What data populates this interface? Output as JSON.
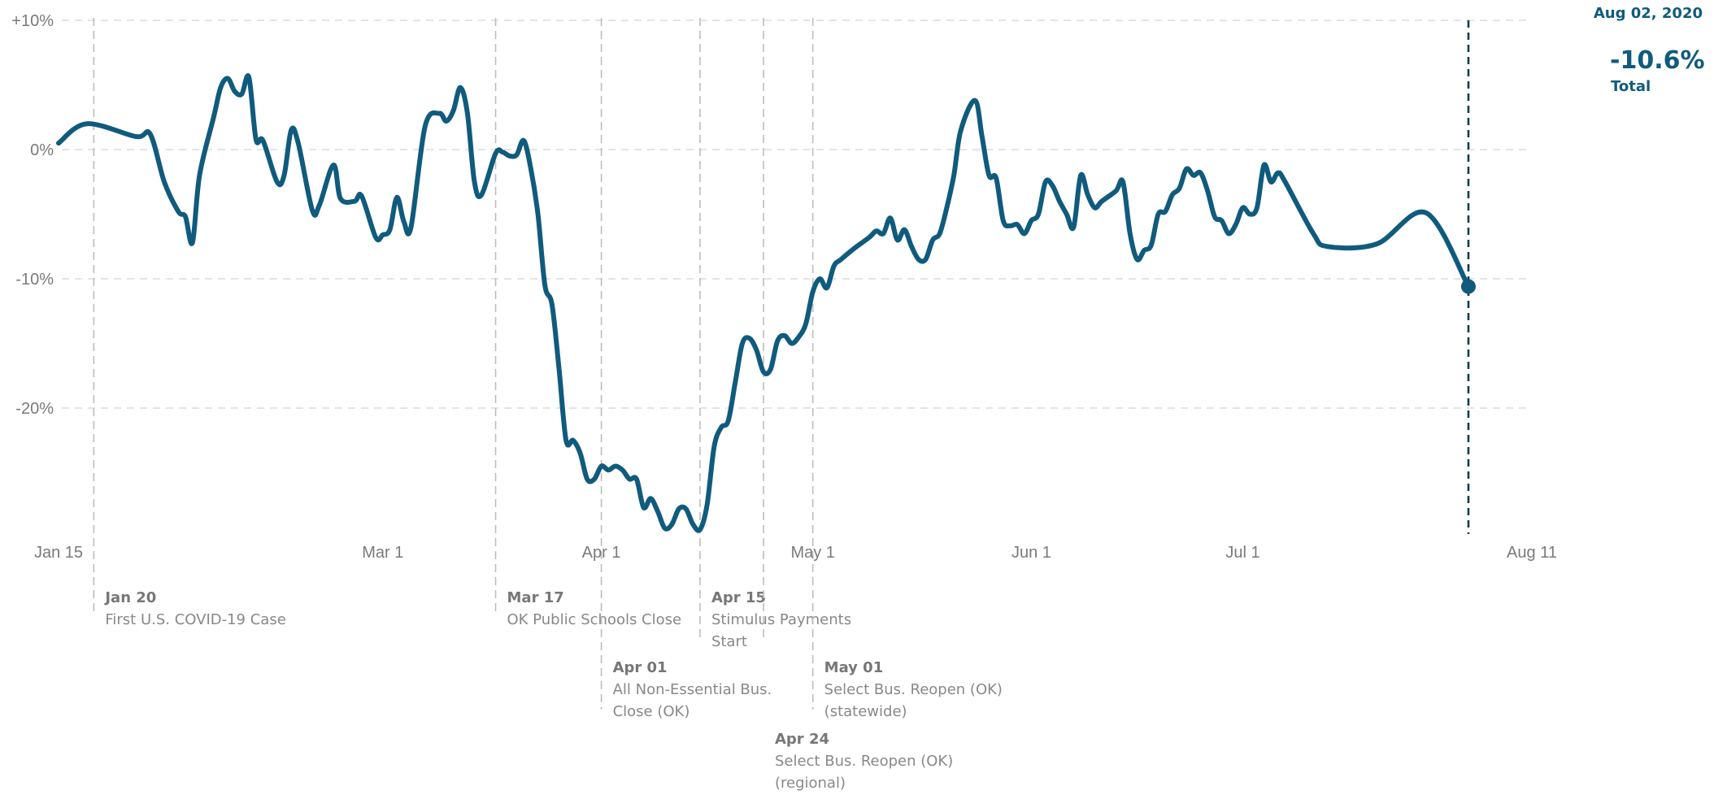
{
  "chart_data": {
    "type": "line",
    "title": "",
    "xlabel": "",
    "ylabel": "",
    "x_ticks": [
      {
        "date": "2020-01-15",
        "label": "Jan 15"
      },
      {
        "date": "2020-03-01",
        "label": "Mar 1"
      },
      {
        "date": "2020-04-01",
        "label": "Apr 1"
      },
      {
        "date": "2020-05-01",
        "label": "May 1"
      },
      {
        "date": "2020-06-01",
        "label": "Jun 1"
      },
      {
        "date": "2020-07-01",
        "label": "Jul 1"
      },
      {
        "date": "2020-08-11",
        "label": "Aug 11"
      }
    ],
    "y_ticks": [
      {
        "value": 10,
        "label": "+10%"
      },
      {
        "value": 0,
        "label": "0%"
      },
      {
        "value": -10,
        "label": "-10%"
      },
      {
        "value": -20,
        "label": "-20%"
      }
    ],
    "xlim": [
      "2020-01-15",
      "2020-08-11"
    ],
    "ylim": [
      -30.5,
      10
    ],
    "grid": {
      "horizontal": true,
      "style": "dashed"
    },
    "color": "#105b7d",
    "series": [
      {
        "points": [
          [
            "2020-01-15",
            0.5
          ],
          [
            "2020-01-19",
            2.0
          ],
          [
            "2020-01-26",
            1.0
          ],
          [
            "2020-01-28",
            1.2
          ],
          [
            "2020-01-30",
            -2.5
          ],
          [
            "2020-02-01",
            -4.8
          ],
          [
            "2020-02-02",
            -5.2
          ],
          [
            "2020-02-03",
            -7.2
          ],
          [
            "2020-02-04",
            -2.0
          ],
          [
            "2020-02-06",
            2.5
          ],
          [
            "2020-02-07",
            4.8
          ],
          [
            "2020-02-08",
            5.5
          ],
          [
            "2020-02-09",
            4.5
          ],
          [
            "2020-02-10",
            4.3
          ],
          [
            "2020-02-11",
            5.6
          ],
          [
            "2020-02-12",
            0.8
          ],
          [
            "2020-02-13",
            0.7
          ],
          [
            "2020-02-15",
            -2.5
          ],
          [
            "2020-02-16",
            -2.0
          ],
          [
            "2020-02-17",
            1.5
          ],
          [
            "2020-02-18",
            0.5
          ],
          [
            "2020-02-20",
            -4.7
          ],
          [
            "2020-02-21",
            -4.3
          ],
          [
            "2020-02-23",
            -1.2
          ],
          [
            "2020-02-24",
            -3.8
          ],
          [
            "2020-02-26",
            -4.0
          ],
          [
            "2020-02-27",
            -3.6
          ],
          [
            "2020-02-29",
            -6.8
          ],
          [
            "2020-03-01",
            -6.6
          ],
          [
            "2020-03-02",
            -6.2
          ],
          [
            "2020-03-03",
            -3.7
          ],
          [
            "2020-03-04",
            -5.6
          ],
          [
            "2020-03-05",
            -6.0
          ],
          [
            "2020-03-07",
            1.8
          ],
          [
            "2020-03-09",
            2.8
          ],
          [
            "2020-03-10",
            2.2
          ],
          [
            "2020-03-11",
            3.0
          ],
          [
            "2020-03-12",
            4.8
          ],
          [
            "2020-03-13",
            2.8
          ],
          [
            "2020-03-14",
            -2.5
          ],
          [
            "2020-03-15",
            -3.5
          ],
          [
            "2020-03-17",
            -0.3
          ],
          [
            "2020-03-18",
            -0.2
          ],
          [
            "2020-03-19",
            -0.5
          ],
          [
            "2020-03-20",
            -0.4
          ],
          [
            "2020-03-21",
            0.7
          ],
          [
            "2020-03-22",
            -1.5
          ],
          [
            "2020-03-23",
            -5.0
          ],
          [
            "2020-03-24",
            -10.5
          ],
          [
            "2020-03-25",
            -12.0
          ],
          [
            "2020-03-26",
            -17.0
          ],
          [
            "2020-03-27",
            -22.5
          ],
          [
            "2020-03-28",
            -22.5
          ],
          [
            "2020-03-29",
            -23.5
          ],
          [
            "2020-03-30",
            -25.5
          ],
          [
            "2020-03-31",
            -25.5
          ],
          [
            "2020-04-01",
            -24.5
          ],
          [
            "2020-04-02",
            -24.8
          ],
          [
            "2020-04-03",
            -24.5
          ],
          [
            "2020-04-04",
            -24.8
          ],
          [
            "2020-04-05",
            -25.5
          ],
          [
            "2020-04-06",
            -25.5
          ],
          [
            "2020-04-07",
            -27.7
          ],
          [
            "2020-04-08",
            -27.0
          ],
          [
            "2020-04-09",
            -28.0
          ],
          [
            "2020-04-10",
            -29.3
          ],
          [
            "2020-04-11",
            -29.0
          ],
          [
            "2020-04-12",
            -27.8
          ],
          [
            "2020-04-13",
            -27.8
          ],
          [
            "2020-04-14",
            -29.0
          ],
          [
            "2020-04-15",
            -29.4
          ],
          [
            "2020-04-16",
            -27.5
          ],
          [
            "2020-04-17",
            -23.0
          ],
          [
            "2020-04-18",
            -21.5
          ],
          [
            "2020-04-19",
            -21.0
          ],
          [
            "2020-04-20",
            -18.0
          ],
          [
            "2020-04-21",
            -15.0
          ],
          [
            "2020-04-22",
            -14.6
          ],
          [
            "2020-04-23",
            -15.5
          ],
          [
            "2020-04-24",
            -17.2
          ],
          [
            "2020-04-25",
            -17.0
          ],
          [
            "2020-04-26",
            -14.8
          ],
          [
            "2020-04-27",
            -14.4
          ],
          [
            "2020-04-28",
            -15.0
          ],
          [
            "2020-04-29",
            -14.5
          ],
          [
            "2020-04-30",
            -13.5
          ],
          [
            "2020-05-01",
            -11.0
          ],
          [
            "2020-05-02",
            -10.0
          ],
          [
            "2020-05-03",
            -10.7
          ],
          [
            "2020-05-04",
            -9.0
          ],
          [
            "2020-05-05",
            -8.5
          ],
          [
            "2020-05-07",
            -7.6
          ],
          [
            "2020-05-09",
            -6.8
          ],
          [
            "2020-05-10",
            -6.3
          ],
          [
            "2020-05-11",
            -6.5
          ],
          [
            "2020-05-12",
            -5.3
          ],
          [
            "2020-05-13",
            -7.0
          ],
          [
            "2020-05-14",
            -6.2
          ],
          [
            "2020-05-15",
            -7.5
          ],
          [
            "2020-05-16",
            -8.5
          ],
          [
            "2020-05-17",
            -8.5
          ],
          [
            "2020-05-18",
            -7.0
          ],
          [
            "2020-05-19",
            -6.5
          ],
          [
            "2020-05-20",
            -4.5
          ],
          [
            "2020-05-21",
            -2.0
          ],
          [
            "2020-05-22",
            1.5
          ],
          [
            "2020-05-24",
            3.8
          ],
          [
            "2020-05-25",
            1.0
          ],
          [
            "2020-05-26",
            -2.0
          ],
          [
            "2020-05-27",
            -2.2
          ],
          [
            "2020-05-28",
            -5.5
          ],
          [
            "2020-05-29",
            -5.9
          ],
          [
            "2020-05-30",
            -5.8
          ],
          [
            "2020-05-31",
            -6.5
          ],
          [
            "2020-06-01",
            -5.5
          ],
          [
            "2020-06-02",
            -5.0
          ],
          [
            "2020-06-03",
            -2.5
          ],
          [
            "2020-06-04",
            -2.8
          ],
          [
            "2020-06-05",
            -4.0
          ],
          [
            "2020-06-06",
            -5.0
          ],
          [
            "2020-06-07",
            -6.0
          ],
          [
            "2020-06-08",
            -2.0
          ],
          [
            "2020-06-09",
            -3.5
          ],
          [
            "2020-06-10",
            -4.5
          ],
          [
            "2020-06-11",
            -4.0
          ],
          [
            "2020-06-13",
            -3.2
          ],
          [
            "2020-06-14",
            -2.5
          ],
          [
            "2020-06-15",
            -6.5
          ],
          [
            "2020-06-16",
            -8.5
          ],
          [
            "2020-06-17",
            -7.8
          ],
          [
            "2020-06-18",
            -7.4
          ],
          [
            "2020-06-19",
            -5.0
          ],
          [
            "2020-06-20",
            -4.8
          ],
          [
            "2020-06-21",
            -3.5
          ],
          [
            "2020-06-22",
            -3.0
          ],
          [
            "2020-06-23",
            -1.5
          ],
          [
            "2020-06-24",
            -2.0
          ],
          [
            "2020-06-25",
            -1.8
          ],
          [
            "2020-06-26",
            -3.2
          ],
          [
            "2020-06-27",
            -5.2
          ],
          [
            "2020-06-28",
            -5.5
          ],
          [
            "2020-06-29",
            -6.5
          ],
          [
            "2020-06-30",
            -5.8
          ],
          [
            "2020-07-01",
            -4.5
          ],
          [
            "2020-07-02",
            -5.0
          ],
          [
            "2020-07-03",
            -4.5
          ],
          [
            "2020-07-04",
            -1.2
          ],
          [
            "2020-07-05",
            -2.5
          ],
          [
            "2020-07-06",
            -1.8
          ],
          [
            "2020-07-07",
            -2.5
          ],
          [
            "2020-07-11",
            -6.5
          ],
          [
            "2020-07-13",
            -7.5
          ],
          [
            "2020-07-20",
            -7.3
          ],
          [
            "2020-07-27",
            -4.9
          ],
          [
            "2020-08-02",
            -10.6
          ]
        ]
      }
    ],
    "events": [
      {
        "date": "2020-01-20",
        "title": "Jan 20",
        "lines": [
          "First U.S. COVID-19 Case"
        ]
      },
      {
        "date": "2020-03-17",
        "title": "Mar 17",
        "lines": [
          "OK Public Schools Close"
        ]
      },
      {
        "date": "2020-04-01",
        "title": "Apr 01",
        "lines": [
          "All Non-Essential Bus.",
          "Close (OK)"
        ]
      },
      {
        "date": "2020-04-15",
        "title": "Apr 15",
        "lines": [
          "Stimulus Payments",
          "Start"
        ]
      },
      {
        "date": "2020-04-24",
        "title": "Apr 24",
        "lines": [
          "Select Bus. Reopen (OK)",
          "(regional)"
        ]
      },
      {
        "date": "2020-05-01",
        "title": "May 01",
        "lines": [
          "Select Bus. Reopen (OK)",
          "(statewide)"
        ]
      }
    ],
    "readout": {
      "date": "2020-08-02",
      "date_label": "Aug 02, 2020",
      "value_label": "-10.6%",
      "label": "Total"
    }
  }
}
